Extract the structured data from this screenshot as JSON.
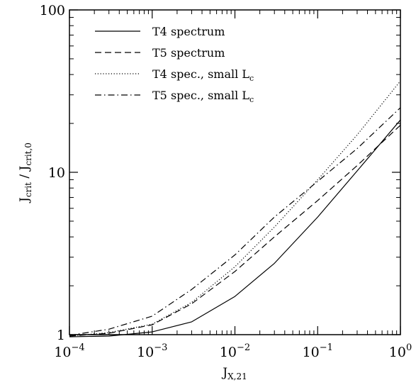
{
  "chart_data": {
    "type": "line",
    "xscale": "log",
    "yscale": "log",
    "xlim": [
      0.0001,
      1
    ],
    "ylim": [
      1,
      100
    ],
    "xlabel": {
      "main": "J",
      "sub": "X,21"
    },
    "ylabel": {
      "num_main": "J",
      "num_sub": "crit",
      "sep": " / ",
      "den_main": "J",
      "den_sub": "crit,0"
    },
    "x_ticks": [
      {
        "value": 0.0001,
        "base": "10",
        "exp": "−4"
      },
      {
        "value": 0.001,
        "base": "10",
        "exp": "−3"
      },
      {
        "value": 0.01,
        "base": "10",
        "exp": "−2"
      },
      {
        "value": 0.1,
        "base": "10",
        "exp": "−1"
      },
      {
        "value": 1,
        "base": "10",
        "exp": "0"
      }
    ],
    "y_ticks": [
      {
        "value": 1,
        "label": "1"
      },
      {
        "value": 10,
        "label": "10"
      },
      {
        "value": 100,
        "label": "100"
      }
    ],
    "legend_position": "top-left",
    "series": [
      {
        "name": "T4 spectrum",
        "name_sub": "",
        "style": "solid",
        "x": [
          0.0001,
          0.0003,
          0.001,
          0.003,
          0.01,
          0.03,
          0.1,
          0.3,
          1
        ],
        "y": [
          0.97,
          0.98,
          1.04,
          1.2,
          1.72,
          2.75,
          5.3,
          10.2,
          21
        ]
      },
      {
        "name": "T5 spectrum",
        "name_sub": "",
        "style": "dashed",
        "x": [
          0.0001,
          0.0003,
          0.001,
          0.003,
          0.01,
          0.03,
          0.1,
          0.3,
          1
        ],
        "y": [
          0.98,
          1.02,
          1.15,
          1.55,
          2.45,
          4.0,
          6.7,
          11.0,
          19.5
        ]
      },
      {
        "name": "T4 spec., small L",
        "name_sub": "c",
        "style": "dotted",
        "x": [
          0.0001,
          0.0003,
          0.001,
          0.003,
          0.01,
          0.03,
          0.1,
          0.3,
          1
        ],
        "y": [
          0.98,
          1.03,
          1.16,
          1.58,
          2.62,
          4.6,
          9.0,
          17.0,
          36.5
        ]
      },
      {
        "name": "T5 spec., small L",
        "name_sub": "c",
        "style": "dashdot",
        "x": [
          0.0001,
          0.0003,
          0.001,
          0.003,
          0.01,
          0.03,
          0.1,
          0.3,
          1
        ],
        "y": [
          0.99,
          1.08,
          1.3,
          1.9,
          3.1,
          5.3,
          8.8,
          14.0,
          25
        ]
      }
    ]
  }
}
